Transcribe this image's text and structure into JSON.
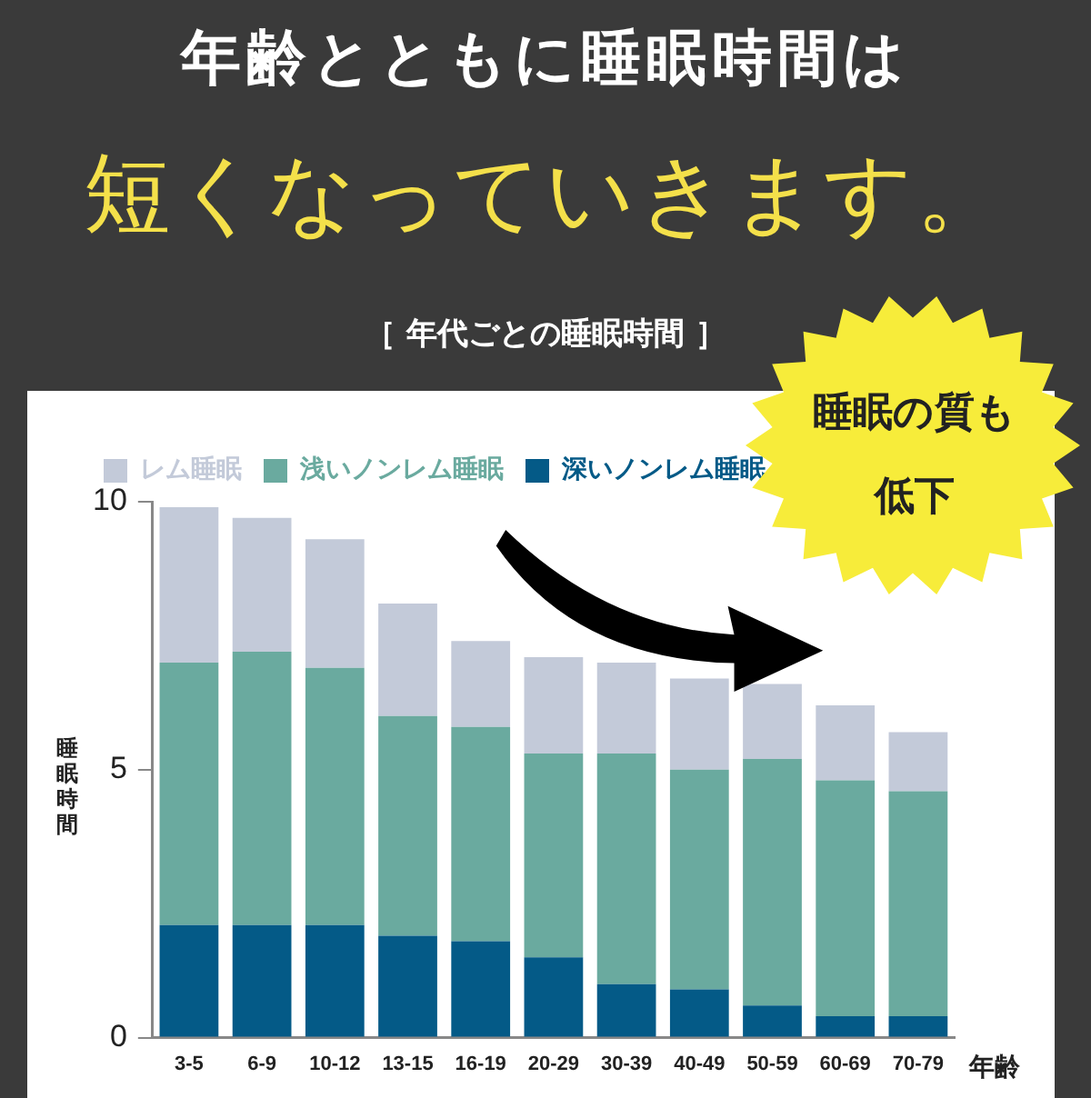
{
  "chart_data": {
    "type": "bar",
    "title": "年齢とともに睡眠時間は",
    "subtitle": "短くなっていきます。",
    "annotations": [
      "［ 年代ごとの睡眠時間 ］",
      "睡眠の質も低下"
    ],
    "xlabel": "年齢",
    "ylabel": "睡眠時間",
    "categories": [
      "3-5",
      "6-9",
      "10-12",
      "13-15",
      "16-19",
      "20-29",
      "30-39",
      "40-49",
      "50-59",
      "60-69",
      "70-79"
    ],
    "stacked": true,
    "series": [
      {
        "name": "深いノンレム睡眠",
        "color": "#045a87",
        "values": [
          2.1,
          2.1,
          2.1,
          1.9,
          1.8,
          1.5,
          1.0,
          0.9,
          0.6,
          0.4,
          0.4
        ]
      },
      {
        "name": "浅いノンレム睡眠",
        "color": "#6aaa9f",
        "values": [
          4.9,
          5.1,
          4.8,
          4.1,
          4.0,
          3.8,
          4.3,
          4.1,
          4.6,
          4.4,
          4.2
        ]
      },
      {
        "name": "レム睡眠",
        "color": "#c3cad9",
        "values": [
          2.9,
          2.5,
          2.4,
          2.1,
          1.6,
          1.8,
          1.7,
          1.7,
          1.4,
          1.4,
          1.1
        ]
      }
    ],
    "ylim": [
      0,
      10
    ],
    "yticks": [
      0,
      5,
      10
    ],
    "grid": false,
    "legend": "top left"
  }
}
